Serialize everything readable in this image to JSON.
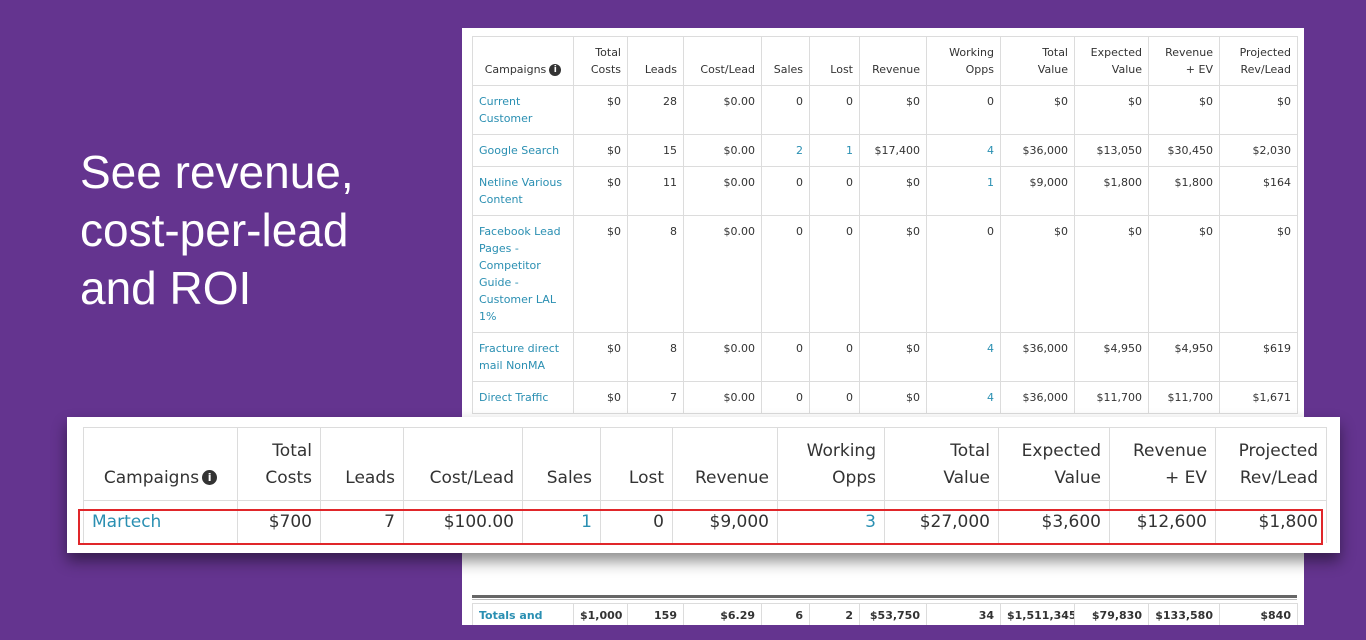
{
  "headline": [
    "See revenue,",
    "cost-per-lead",
    "and ROI"
  ],
  "columns": [
    "Campaigns",
    "Total Costs",
    "Leads",
    "Cost/Lead",
    "Sales",
    "Lost",
    "Revenue",
    "Working Opps",
    "Total Value",
    "Expected Value",
    "Revenue + EV",
    "Projected Rev/Lead"
  ],
  "column_lines": [
    [
      "Campaigns"
    ],
    [
      "Total",
      "Costs"
    ],
    [
      "Leads"
    ],
    [
      "Cost/Lead"
    ],
    [
      "Sales"
    ],
    [
      "Lost"
    ],
    [
      "Revenue"
    ],
    [
      "Working",
      "Opps"
    ],
    [
      "Total",
      "Value"
    ],
    [
      "Expected",
      "Value"
    ],
    [
      "Revenue",
      "+ EV"
    ],
    [
      "Projected",
      "Rev/Lead"
    ]
  ],
  "info_icon": "info-icon",
  "rows": [
    {
      "campaign": "Current Customer",
      "total_costs": "$0",
      "leads": "28",
      "cost_per_lead": "$0.00",
      "sales": "0",
      "lost": "0",
      "revenue": "$0",
      "working_opps": "0",
      "total_value": "$0",
      "expected_value": "$0",
      "revenue_ev": "$0",
      "projected_rev_lead": "$0",
      "links": []
    },
    {
      "campaign": "Google Search",
      "total_costs": "$0",
      "leads": "15",
      "cost_per_lead": "$0.00",
      "sales": "2",
      "lost": "1",
      "revenue": "$17,400",
      "working_opps": "4",
      "total_value": "$36,000",
      "expected_value": "$13,050",
      "revenue_ev": "$30,450",
      "projected_rev_lead": "$2,030",
      "links": [
        "sales",
        "lost",
        "working_opps"
      ]
    },
    {
      "campaign": "Netline Various Content",
      "total_costs": "$0",
      "leads": "11",
      "cost_per_lead": "$0.00",
      "sales": "0",
      "lost": "0",
      "revenue": "$0",
      "working_opps": "1",
      "total_value": "$9,000",
      "expected_value": "$1,800",
      "revenue_ev": "$1,800",
      "projected_rev_lead": "$164",
      "links": [
        "working_opps"
      ]
    },
    {
      "campaign": "Facebook Lead Pages - Competitor Guide - Customer LAL 1%",
      "total_costs": "$0",
      "leads": "8",
      "cost_per_lead": "$0.00",
      "sales": "0",
      "lost": "0",
      "revenue": "$0",
      "working_opps": "0",
      "total_value": "$0",
      "expected_value": "$0",
      "revenue_ev": "$0",
      "projected_rev_lead": "$0",
      "links": []
    },
    {
      "campaign": "Fracture direct mail NonMA",
      "total_costs": "$0",
      "leads": "8",
      "cost_per_lead": "$0.00",
      "sales": "0",
      "lost": "0",
      "revenue": "$0",
      "working_opps": "4",
      "total_value": "$36,000",
      "expected_value": "$4,950",
      "revenue_ev": "$4,950",
      "projected_rev_lead": "$619",
      "links": [
        "working_opps"
      ]
    },
    {
      "campaign": "Direct Traffic",
      "total_costs": "$0",
      "leads": "7",
      "cost_per_lead": "$0.00",
      "sales": "0",
      "lost": "0",
      "revenue": "$0",
      "working_opps": "4",
      "total_value": "$36,000",
      "expected_value": "$11,700",
      "revenue_ev": "$11,700",
      "projected_rev_lead": "$1,671",
      "links": [
        "working_opps"
      ]
    }
  ],
  "totals": {
    "campaign": "Totals and Averages",
    "total_costs": "$1,000",
    "leads": "159",
    "cost_per_lead": "$6.29",
    "sales": "6",
    "lost": "2",
    "revenue": "$53,750",
    "working_opps": "34",
    "total_value": "$1,511,345",
    "expected_value": "$79,830",
    "revenue_ev": "$133,580",
    "projected_rev_lead": "$840"
  },
  "highlight_row": {
    "campaign": "Martech",
    "total_costs": "$700",
    "leads": "7",
    "cost_per_lead": "$100.00",
    "sales": "1",
    "lost": "0",
    "revenue": "$9,000",
    "working_opps": "3",
    "total_value": "$27,000",
    "expected_value": "$3,600",
    "revenue_ev": "$12,600",
    "projected_rev_lead": "$1,800",
    "links": [
      "sales",
      "working_opps"
    ]
  }
}
